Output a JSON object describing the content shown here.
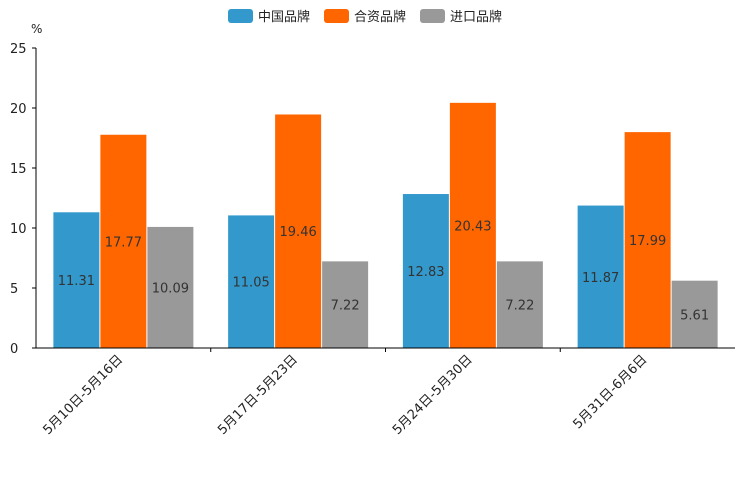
{
  "chart_data": {
    "type": "bar",
    "title": "",
    "unit": "%",
    "categories": [
      "5月10日-5月16日",
      "5月17日-5月23日",
      "5月24日-5月30日",
      "5月31日-6月6日"
    ],
    "series": [
      {
        "name": "中国品牌",
        "color": "#3399CC",
        "values": [
          11.31,
          11.05,
          12.83,
          11.87
        ]
      },
      {
        "name": "合资品牌",
        "color": "#FF6600",
        "values": [
          17.77,
          19.46,
          20.43,
          17.99
        ]
      },
      {
        "name": "进口品牌",
        "color": "#999999",
        "values": [
          10.09,
          7.22,
          7.22,
          5.61
        ]
      }
    ],
    "ylim": [
      0,
      25
    ],
    "yticks": [
      0,
      5,
      10,
      15,
      20,
      25
    ],
    "legend_position": "top-center",
    "xlabel": "",
    "ylabel": "%"
  }
}
